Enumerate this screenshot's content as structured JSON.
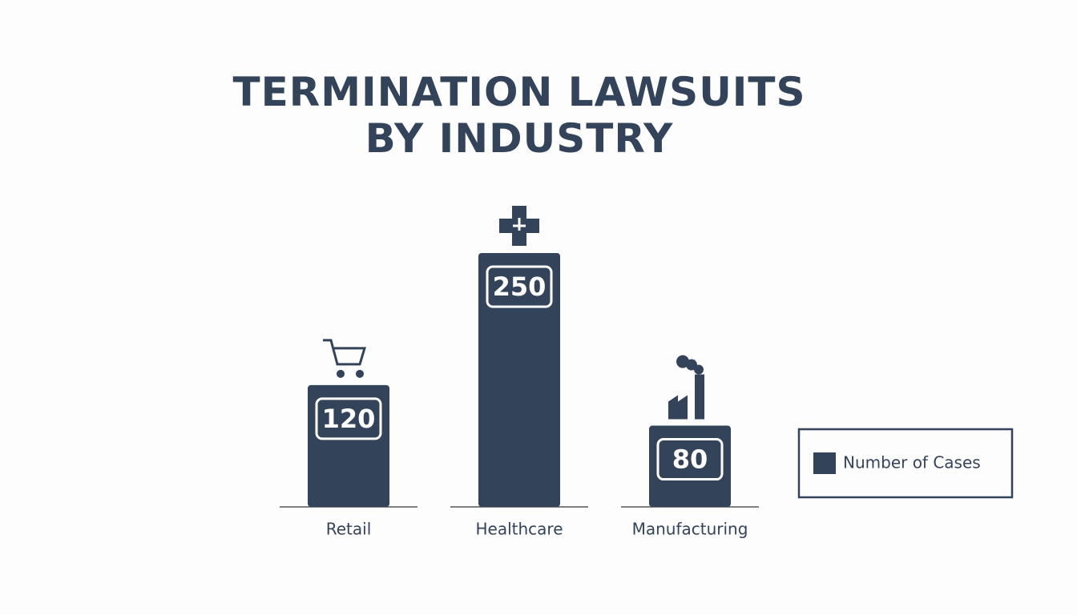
{
  "chart_data": {
    "type": "bar",
    "title": "TERMINATION LAWSUITS BY INDUSTRY",
    "categories": [
      "Retail",
      "Healthcare",
      "Manufacturing"
    ],
    "series": [
      {
        "name": "Number of Cases",
        "color": "#33435a",
        "values": [
          120,
          250,
          80
        ]
      }
    ]
  }
}
